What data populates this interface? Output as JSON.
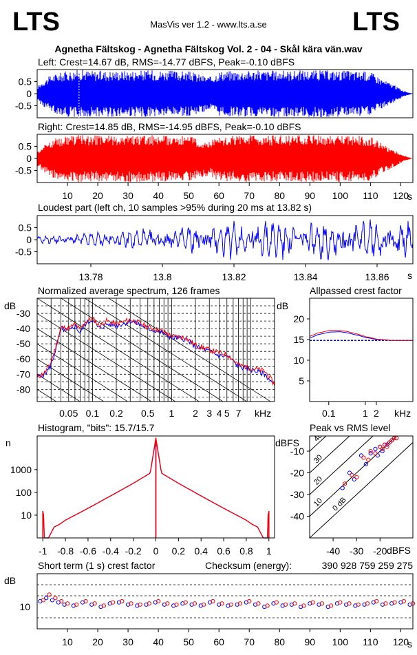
{
  "header": {
    "logo_left": "LTS",
    "logo_right": "LTS",
    "app_version": "MasVis ver 1.2 - www.lts.a.se",
    "file_title": "Agnetha Fältskog - Agnetha Fältskog Vol. 2 - 04 - Skål kära vän.wav"
  },
  "colors": {
    "left": "#0000ff",
    "right": "#ff0000",
    "axis": "#000000"
  },
  "chart_data": [
    {
      "id": "left-waveform",
      "type": "area",
      "title": "Left: Crest=14.67 dB, RMS=-14.77 dBFS, Peak=-0.10 dBFS",
      "yticks": [
        "0.5",
        "0",
        "-0.5"
      ],
      "ylim": [
        -1,
        1
      ],
      "xlim": [
        0,
        124
      ],
      "envelope_time_s": [
        0,
        2,
        5,
        10,
        14,
        20,
        30,
        40,
        50,
        57,
        60,
        70,
        80,
        90,
        100,
        110,
        114,
        118,
        121,
        124
      ],
      "envelope_peak": [
        0.3,
        0.55,
        0.8,
        0.95,
        1.0,
        0.95,
        0.97,
        0.98,
        0.93,
        0.7,
        0.95,
        0.97,
        0.96,
        0.98,
        0.97,
        0.92,
        0.6,
        0.35,
        0.12,
        0.0
      ]
    },
    {
      "id": "right-waveform",
      "type": "area",
      "title": "Right: Crest=14.85 dB, RMS=-14.95 dBFS, Peak=-0.10 dBFS",
      "yticks": [
        "0.5",
        "0",
        "-0.5"
      ],
      "ylim": [
        -1,
        1
      ],
      "xlim": [
        0,
        124
      ],
      "xticks": [
        "10",
        "20",
        "30",
        "40",
        "50",
        "60",
        "70",
        "80",
        "90",
        "100",
        "110",
        "120"
      ],
      "xunit": "s",
      "envelope_time_s": [
        0,
        2,
        5,
        10,
        14,
        20,
        30,
        40,
        50,
        57,
        60,
        70,
        80,
        90,
        100,
        110,
        114,
        118,
        121,
        124
      ],
      "envelope_peak": [
        0.3,
        0.55,
        0.8,
        0.95,
        1.0,
        0.95,
        0.97,
        0.98,
        0.93,
        0.7,
        0.95,
        0.97,
        0.96,
        0.98,
        0.97,
        0.92,
        0.6,
        0.35,
        0.12,
        0.0
      ]
    },
    {
      "id": "loudest-part",
      "type": "line",
      "title": "Loudest part (left  ch, 10 samples >95% during 20 ms at 13.82 s)",
      "yticks": [
        "0.5",
        "0",
        "-0.5"
      ],
      "ylim": [
        -1,
        1
      ],
      "xlim": [
        13.765,
        13.87
      ],
      "xticks": [
        "13.78",
        "13.8",
        "13.82",
        "13.84",
        "13.86"
      ],
      "xunit": "s"
    },
    {
      "id": "spectrum",
      "type": "line",
      "title": "Normalized average spectrum, 126 frames",
      "ylabel": "dB",
      "yticks": [
        "-30",
        "-40",
        "-50",
        "-60",
        "-70",
        "-80"
      ],
      "ylim": [
        -88,
        -20
      ],
      "xscale": "log",
      "xlim_khz": [
        0.02,
        20
      ],
      "xticks": [
        "0.05",
        "0.1",
        "0.2",
        "0.5",
        "1",
        "2",
        "3",
        "4",
        "5",
        "7"
      ],
      "xunit": "kHz",
      "series": [
        {
          "channel": "left",
          "x_khz": [
            0.02,
            0.025,
            0.03,
            0.04,
            0.05,
            0.06,
            0.07,
            0.08,
            0.1,
            0.12,
            0.15,
            0.2,
            0.3,
            0.5,
            0.7,
            1,
            1.5,
            2,
            3,
            4,
            5,
            7,
            10,
            15,
            20
          ],
          "y_db": [
            -72,
            -70,
            -64,
            -40,
            -42,
            -38,
            -43,
            -37,
            -34,
            -40,
            -37,
            -38,
            -35,
            -40,
            -42,
            -46,
            -47,
            -52,
            -55,
            -58,
            -58,
            -65,
            -67,
            -70,
            -78
          ]
        },
        {
          "channel": "right",
          "x_khz": [
            0.02,
            0.025,
            0.03,
            0.04,
            0.05,
            0.06,
            0.07,
            0.08,
            0.1,
            0.12,
            0.15,
            0.2,
            0.3,
            0.5,
            0.7,
            1,
            1.5,
            2,
            3,
            4,
            5,
            7,
            10,
            15,
            20
          ],
          "y_db": [
            -72,
            -69,
            -62,
            -39,
            -40,
            -37,
            -41,
            -36,
            -33,
            -38,
            -35,
            -37,
            -34,
            -39,
            -41,
            -45,
            -46,
            -51,
            -54,
            -56,
            -57,
            -64,
            -66,
            -68,
            -77
          ]
        }
      ]
    },
    {
      "id": "allpassed-crest",
      "type": "line",
      "title": "Allpassed crest factor",
      "ylabel": "dB",
      "yticks": [
        "20",
        "15",
        "10",
        "5"
      ],
      "ylim": [
        0,
        25
      ],
      "xscale": "log",
      "xlim_khz": [
        0.03,
        20
      ],
      "xticks": [
        "0.1",
        "1",
        "2"
      ],
      "xunit": "kHz",
      "reference_db": 14.8,
      "series": [
        {
          "channel": "left",
          "x_khz": [
            0.03,
            0.05,
            0.1,
            0.2,
            0.5,
            1,
            2,
            5,
            10,
            20
          ],
          "y_db": [
            15.4,
            16.2,
            16.8,
            16.9,
            16.2,
            15.5,
            15.0,
            14.8,
            14.8,
            14.8
          ]
        },
        {
          "channel": "right",
          "x_khz": [
            0.03,
            0.05,
            0.1,
            0.2,
            0.5,
            1,
            2,
            5,
            10,
            20
          ],
          "y_db": [
            15.8,
            16.6,
            17.2,
            17.2,
            16.5,
            15.7,
            15.1,
            14.8,
            14.8,
            14.8
          ]
        }
      ]
    },
    {
      "id": "histogram",
      "type": "bar",
      "title": "Histogram, \"bits\": 15.7/15.7",
      "ylabel": "n",
      "yscale": "log",
      "yticks": [
        "1000",
        "100",
        "10"
      ],
      "ylim": [
        1,
        30000
      ],
      "xlim": [
        -1.05,
        1.05
      ],
      "xticks": [
        "-1",
        "-0.8",
        "-0.6",
        "-0.4",
        "-0.2",
        "0",
        "0.2",
        "0.4",
        "0.6",
        "0.8",
        "1"
      ],
      "series": [
        {
          "channel": "left",
          "x": [
            -1.0,
            -0.95,
            -0.9,
            -0.85,
            -0.8,
            -0.6,
            -0.4,
            -0.2,
            -0.05,
            0,
            0.05,
            0.2,
            0.4,
            0.6,
            0.8,
            0.85,
            0.9,
            0.95,
            1.0
          ],
          "y": [
            15,
            0,
            3,
            4,
            6,
            20,
            70,
            250,
            700,
            22000,
            700,
            250,
            70,
            20,
            6,
            4,
            3,
            0,
            15
          ]
        },
        {
          "channel": "right",
          "x": [
            -1.0,
            -0.95,
            -0.9,
            -0.85,
            -0.8,
            -0.6,
            -0.4,
            -0.2,
            -0.05,
            0,
            0.05,
            0.2,
            0.4,
            0.6,
            0.8,
            0.85,
            0.9,
            0.95,
            1.0
          ],
          "y": [
            15,
            0,
            3,
            4,
            6,
            20,
            70,
            250,
            700,
            25000,
            700,
            250,
            70,
            20,
            6,
            4,
            3,
            0,
            15
          ]
        }
      ]
    },
    {
      "id": "peak-vs-rms",
      "type": "scatter",
      "title": "Peak vs RMS level",
      "ylabel": "dBFS",
      "xlabel": "dBFS",
      "yticks": [
        "-10",
        "-20",
        "-30",
        "-40"
      ],
      "xticks": [
        "-40",
        "-30",
        "-20"
      ],
      "xlim": [
        -50,
        -6
      ],
      "ylim": [
        -50,
        -3
      ],
      "diagonal_labels": [
        "40",
        "30",
        "20",
        "10",
        "0 dB"
      ],
      "series": [
        {
          "channel": "left",
          "x": [
            -36,
            -33,
            -31,
            -28,
            -26,
            -24,
            -22,
            -21,
            -20,
            -19,
            -18,
            -17,
            -16,
            -15,
            -14
          ],
          "y": [
            -27,
            -20,
            -23,
            -12,
            -16,
            -11,
            -9,
            -12,
            -8,
            -10,
            -7,
            -7,
            -6,
            -5,
            -4
          ]
        },
        {
          "channel": "right",
          "x": [
            -35,
            -32,
            -30,
            -27,
            -25,
            -24,
            -22,
            -20,
            -19,
            -18,
            -17,
            -16,
            -15,
            -14,
            -13
          ],
          "y": [
            -25,
            -21,
            -22,
            -13,
            -14,
            -10,
            -11,
            -8,
            -9,
            -7,
            -8,
            -6,
            -5,
            -4,
            -4
          ]
        }
      ]
    },
    {
      "id": "short-term-crest",
      "type": "scatter",
      "title": "Short term (1 s) crest factor",
      "checksum_label": "Checksum (energy):",
      "checksum_value": "390 928 759 259 275",
      "ylabel": "dB",
      "yticks": [
        "10"
      ],
      "ylim": [
        0,
        25
      ],
      "xlim": [
        0,
        124
      ],
      "xticks": [
        "10",
        "20",
        "30",
        "40",
        "50",
        "60",
        "70",
        "80",
        "90",
        "100",
        "110",
        "120"
      ],
      "xunit": "s",
      "series": [
        {
          "channel": "left",
          "x": [
            1,
            3,
            5,
            7,
            9,
            12,
            15,
            18,
            21,
            24,
            27,
            30,
            33,
            36,
            39,
            42,
            45,
            48,
            51,
            54,
            57,
            60,
            63,
            66,
            69,
            72,
            75,
            78,
            81,
            84,
            87,
            90,
            93,
            96,
            99,
            102,
            105,
            108,
            111,
            114,
            117,
            120,
            123
          ],
          "y": [
            12.5,
            14,
            13,
            12,
            11,
            10.5,
            12,
            11,
            10,
            11.5,
            12,
            11,
            10.5,
            11,
            12,
            11,
            10.5,
            11.5,
            11,
            10.5,
            12,
            11,
            10.5,
            11,
            12,
            11,
            10,
            11.5,
            10.5,
            11,
            10,
            11.5,
            11,
            10,
            11.5,
            11,
            10.5,
            11,
            12,
            11,
            11.5,
            12,
            11
          ]
        },
        {
          "channel": "right",
          "x": [
            2,
            4,
            6,
            8,
            10,
            13,
            16,
            19,
            22,
            25,
            28,
            31,
            34,
            37,
            40,
            43,
            46,
            49,
            52,
            55,
            58,
            61,
            64,
            67,
            70,
            73,
            76,
            79,
            82,
            85,
            88,
            91,
            94,
            97,
            100,
            103,
            106,
            109,
            112,
            115,
            118,
            121,
            124
          ],
          "y": [
            13,
            15.5,
            14,
            12.5,
            11.5,
            11,
            12.5,
            11.5,
            10.5,
            12,
            12.5,
            11.5,
            11,
            11.5,
            12.5,
            11.5,
            11,
            12,
            11.5,
            11,
            12.5,
            11.5,
            11,
            11.5,
            12.5,
            11.5,
            10.5,
            12,
            11,
            11.5,
            10.5,
            12,
            11.5,
            10.5,
            12,
            11.5,
            11,
            11.5,
            12.5,
            11.5,
            12,
            12.5,
            11.5
          ]
        }
      ]
    }
  ]
}
